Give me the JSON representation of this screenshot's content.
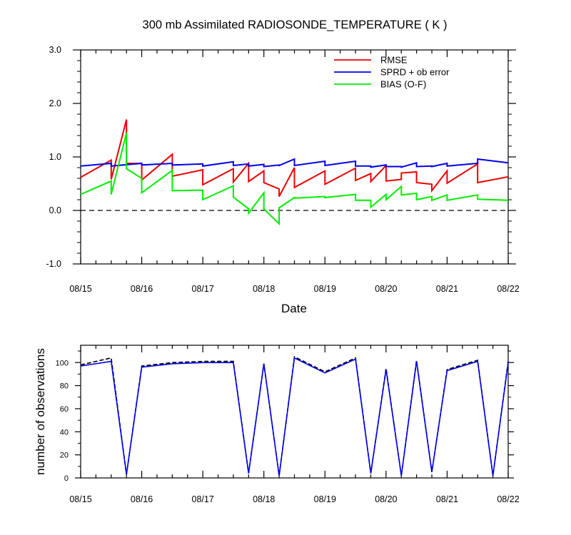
{
  "chart_data": [
    {
      "type": "line",
      "title": "300 mb Assimilated RADIOSONDE_TEMPERATURE ( K )",
      "xlabel": "Date",
      "ylabel": "",
      "xlim": [
        0,
        7
      ],
      "ylim": [
        -1.0,
        3.0
      ],
      "ytick_labels": [
        "-1.0",
        "0.0",
        "1.0",
        "2.0",
        "3.0"
      ],
      "yticks": [
        -1,
        0,
        1,
        2,
        3
      ],
      "xtick_labels": [
        "08/15",
        "08/16",
        "08/17",
        "08/18",
        "08/19",
        "08/20",
        "08/21",
        "08/22"
      ],
      "xticks": [
        0,
        1,
        2,
        3,
        4,
        5,
        6,
        7
      ],
      "reference_line": {
        "y": 0,
        "style": "dashed"
      },
      "legend_placement": "top-right",
      "series": [
        {
          "name": "RMSE",
          "color": "#ee0000",
          "x": [
            0,
            0.5,
            0.5,
            0.75,
            0.75,
            1.0,
            1.0,
            1.5,
            1.5,
            2.0,
            2.0,
            2.5,
            2.5,
            2.75,
            2.75,
            3.0,
            3.0,
            3.25,
            3.25,
            3.5,
            3.5,
            4.0,
            4.0,
            4.5,
            4.5,
            4.75,
            4.75,
            5.0,
            5.0,
            5.25,
            5.25,
            5.5,
            5.5,
            5.75,
            5.75,
            6.0,
            6.0,
            6.5,
            6.5,
            7.0
          ],
          "y": [
            0.62,
            0.94,
            0.58,
            1.7,
            0.88,
            0.88,
            0.57,
            1.05,
            0.64,
            0.76,
            0.48,
            0.78,
            0.53,
            0.88,
            0.54,
            0.74,
            0.52,
            0.4,
            0.26,
            0.8,
            0.43,
            0.74,
            0.49,
            0.79,
            0.56,
            0.69,
            0.54,
            0.84,
            0.55,
            0.58,
            0.7,
            0.72,
            0.52,
            0.49,
            0.37,
            0.74,
            0.51,
            0.87,
            0.52,
            0.63
          ]
        },
        {
          "name": "SPRD + ob error",
          "color": "#0000ee",
          "x": [
            0,
            0.5,
            0.5,
            1.0,
            1.0,
            1.5,
            1.5,
            2.0,
            2.0,
            2.5,
            2.5,
            2.75,
            2.75,
            3.0,
            3.0,
            3.25,
            3.25,
            3.5,
            3.5,
            4.0,
            4.0,
            4.5,
            4.5,
            4.75,
            4.75,
            5.0,
            5.0,
            5.25,
            5.25,
            5.5,
            5.5,
            5.75,
            5.75,
            6.0,
            6.0,
            6.5,
            6.5,
            7.0
          ],
          "y": [
            0.83,
            0.88,
            0.83,
            0.88,
            0.85,
            0.88,
            0.85,
            0.87,
            0.83,
            0.91,
            0.84,
            0.87,
            0.83,
            0.86,
            0.82,
            0.85,
            0.84,
            0.96,
            0.84,
            0.92,
            0.84,
            0.92,
            0.83,
            0.83,
            0.81,
            0.85,
            0.82,
            0.82,
            0.81,
            0.89,
            0.82,
            0.83,
            0.82,
            0.88,
            0.83,
            0.88,
            0.96,
            0.89
          ]
        },
        {
          "name": "BIAS (O-F)",
          "color": "#00ee00",
          "x": [
            0,
            0.5,
            0.5,
            0.75,
            0.75,
            1.0,
            1.0,
            1.5,
            1.5,
            2.0,
            2.0,
            2.5,
            2.5,
            2.75,
            2.75,
            3.0,
            3.0,
            3.25,
            3.25,
            3.5,
            3.5,
            4.0,
            4.0,
            4.5,
            4.5,
            4.75,
            4.75,
            5.0,
            5.0,
            5.25,
            5.25,
            5.5,
            5.5,
            5.75,
            5.75,
            6.0,
            6.0,
            6.5,
            6.5,
            7.0
          ],
          "y": [
            0.3,
            0.55,
            0.3,
            1.45,
            0.78,
            0.6,
            0.33,
            0.75,
            0.37,
            0.38,
            0.2,
            0.46,
            0.25,
            0.03,
            -0.05,
            0.33,
            0.03,
            -0.25,
            0.05,
            0.24,
            0.23,
            0.26,
            0.24,
            0.3,
            0.19,
            0.19,
            0.06,
            0.3,
            0.2,
            0.45,
            0.29,
            0.32,
            0.2,
            0.26,
            0.19,
            0.29,
            0.19,
            0.29,
            0.21,
            0.19
          ]
        }
      ]
    },
    {
      "type": "line",
      "title": "",
      "xlabel": "",
      "ylabel": "number of observations",
      "xlim": [
        0,
        7
      ],
      "ylim": [
        0,
        115
      ],
      "yticks": [
        0,
        20,
        40,
        60,
        80,
        100
      ],
      "ytick_labels": [
        "0",
        "20",
        "40",
        "60",
        "80",
        "100"
      ],
      "xtick_labels": [
        "08/15",
        "08/16",
        "08/17",
        "08/18",
        "08/19",
        "08/20",
        "08/21",
        "08/22"
      ],
      "xticks": [
        0,
        1,
        2,
        3,
        4,
        5,
        6,
        7
      ],
      "series": [
        {
          "color": "#000000",
          "style": "dashed",
          "x": [
            0,
            0.5,
            0.75,
            1.0,
            1.5,
            2.0,
            2.5,
            2.75,
            3.0,
            3.25,
            3.5,
            4.0,
            4.5,
            4.75,
            5.0,
            5.25,
            5.5,
            5.75,
            6.0,
            6.5,
            6.75,
            7.0
          ],
          "y": [
            98,
            104,
            3,
            97,
            100,
            101,
            101,
            4,
            99,
            2,
            105,
            92,
            104,
            4,
            95,
            2,
            102,
            5,
            94,
            102,
            2,
            101
          ]
        },
        {
          "color": "#0000ee",
          "style": "solid",
          "x": [
            0,
            0.5,
            0.75,
            1.0,
            1.5,
            2.0,
            2.5,
            2.75,
            3.0,
            3.25,
            3.5,
            4.0,
            4.5,
            4.75,
            5.0,
            5.25,
            5.5,
            5.75,
            6.0,
            6.5,
            6.75,
            7.0
          ],
          "y": [
            97,
            101,
            3,
            96,
            99,
            100,
            100,
            4,
            99,
            2,
            104,
            91,
            103,
            4,
            94,
            2,
            101,
            5,
            93,
            101,
            2,
            100
          ]
        }
      ]
    }
  ]
}
